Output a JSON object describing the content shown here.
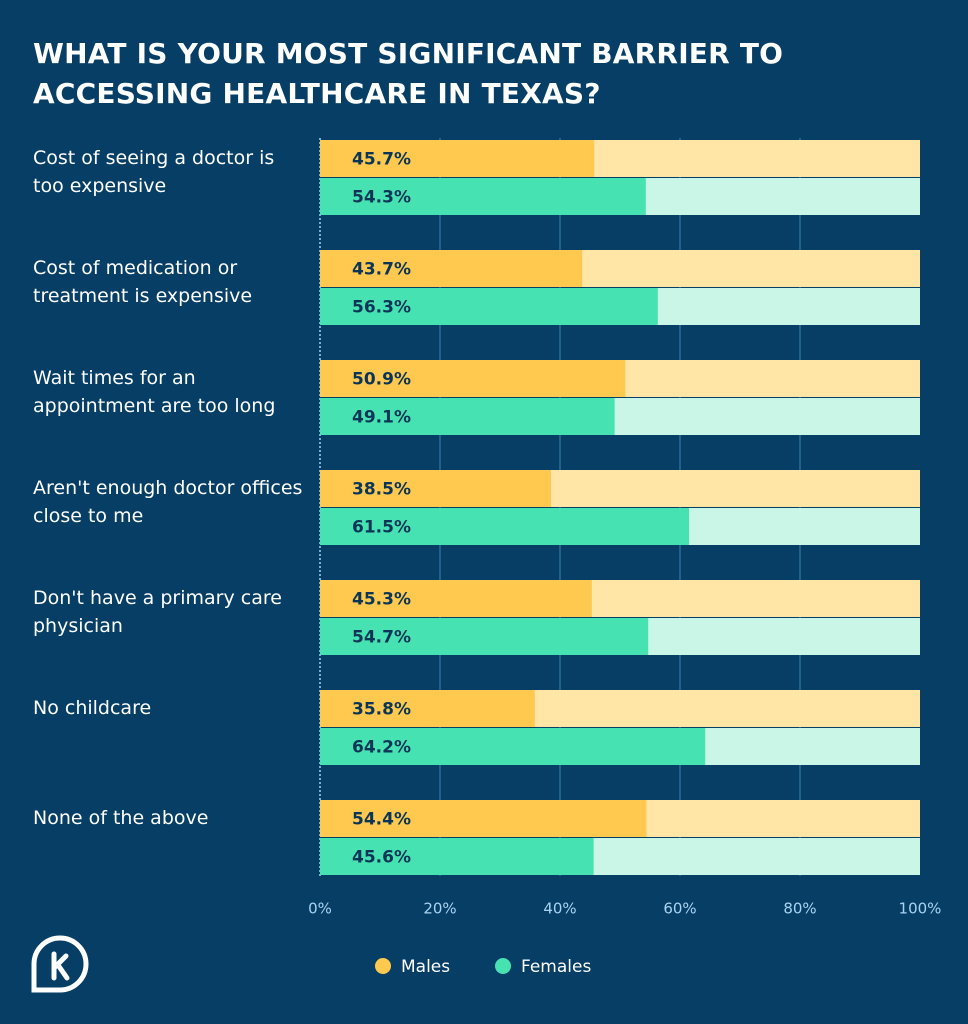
{
  "chart_data": {
    "type": "bar",
    "orientation": "horizontal",
    "title": "WHAT IS YOUR MOST SIGNIFICANT BARRIER TO ACCESSING HEALTHCARE IN TEXAS?",
    "categories": [
      "Cost of seeing a doctor is too expensive",
      "Cost of medication or treatment is expensive",
      "Wait times for an appointment are too long",
      "Aren't enough doctor offices close to me",
      "Don't have a primary care physician",
      "No childcare",
      "None of the above"
    ],
    "series": [
      {
        "name": "Males",
        "color": "#ffc94f",
        "track_color": "#ffe6a6",
        "values": [
          45.7,
          43.7,
          50.9,
          38.5,
          45.3,
          35.8,
          54.4
        ],
        "value_labels": [
          "45.7%",
          "43.7%",
          "50.9%",
          "38.5%",
          "45.3%",
          "35.8%",
          "54.4%"
        ]
      },
      {
        "name": "Females",
        "color": "#46e2b2",
        "track_color": "#c9f6e7",
        "values": [
          54.3,
          56.3,
          49.1,
          61.5,
          54.7,
          64.2,
          45.6
        ],
        "value_labels": [
          "54.3%",
          "56.3%",
          "49.1%",
          "61.5%",
          "54.7%",
          "64.2%",
          "45.6%"
        ]
      }
    ],
    "xlim": [
      0,
      100
    ],
    "xticks": [
      {
        "value": 0,
        "label": "0%"
      },
      {
        "value": 20,
        "label": "20%"
      },
      {
        "value": 40,
        "label": "40%"
      },
      {
        "value": 60,
        "label": "60%"
      },
      {
        "value": 80,
        "label": "80%"
      },
      {
        "value": 100,
        "label": "100%"
      }
    ],
    "grid": true,
    "legend": "bottom"
  }
}
